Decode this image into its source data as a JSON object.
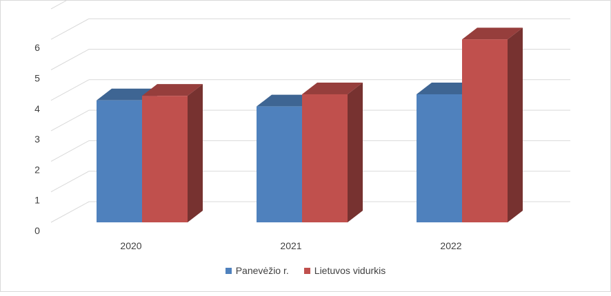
{
  "chart_data": {
    "type": "bar",
    "categories": [
      "2020",
      "2021",
      "2022"
    ],
    "series": [
      {
        "name": "Panevėžio r.",
        "values": [
          4.0,
          3.8,
          4.2
        ],
        "color": "#4F81BD"
      },
      {
        "name": "Lietuvos vidurkis",
        "values": [
          4.15,
          4.2,
          6.0
        ],
        "color": "#C0504D"
      }
    ],
    "y_ticks": [
      "0",
      "1",
      "2",
      "3",
      "4",
      "5",
      "6"
    ],
    "ylim": [
      0,
      7
    ],
    "grid": true,
    "style": "3d-clustered-column",
    "legend_position": "bottom"
  }
}
